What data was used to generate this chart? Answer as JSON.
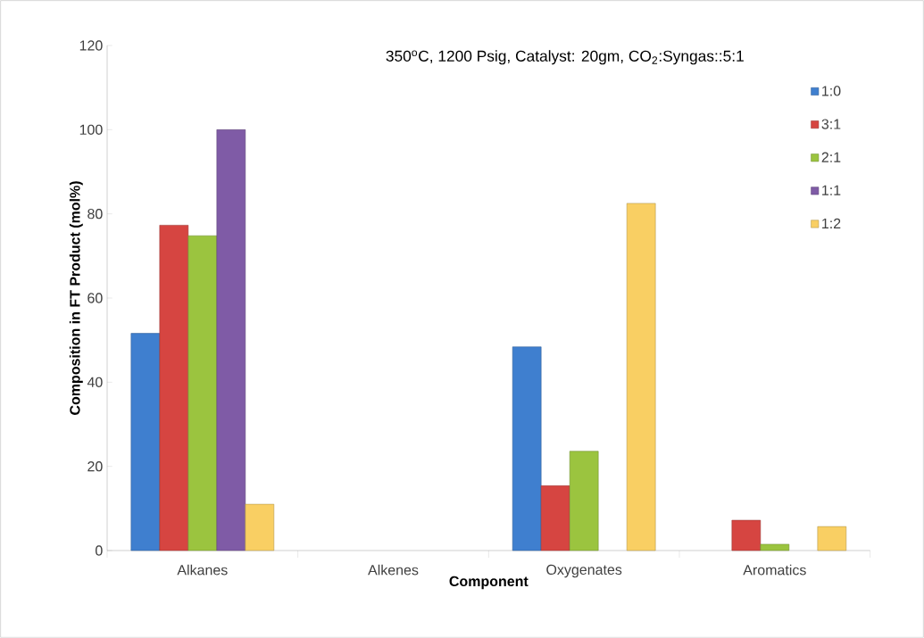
{
  "chart_data": {
    "type": "bar",
    "title": "350$^{o}$C, 1200 Psig, Catalyst: 20gm, CO$_{2}$:Syngas::5:1",
    "xlabel": "Component",
    "ylabel": "Composition in FT Product (mol%)",
    "categories": [
      "Alkanes",
      "Alkenes",
      "Oxygenates",
      "Aromatics"
    ],
    "series": [
      {
        "name": "1:0",
        "color": "#3f7fcf",
        "values": [
          51.6,
          null,
          48.4,
          null
        ]
      },
      {
        "name": "3:1",
        "color": "#d64541",
        "values": [
          77.3,
          null,
          15.4,
          7.2
        ]
      },
      {
        "name": "2:1",
        "color": "#9bc43f",
        "values": [
          74.8,
          null,
          23.6,
          1.5
        ]
      },
      {
        "name": "1:1",
        "color": "#7f5ba6",
        "values": [
          100,
          null,
          null,
          null
        ]
      },
      {
        "name": "1:2",
        "color": "#f9cf63",
        "values": [
          11,
          null,
          82.5,
          5.7
        ]
      }
    ],
    "ylim": [
      0,
      120
    ],
    "yticks": [
      0,
      20,
      40,
      60,
      80,
      100,
      120
    ],
    "grid": false,
    "legend": "top right"
  }
}
